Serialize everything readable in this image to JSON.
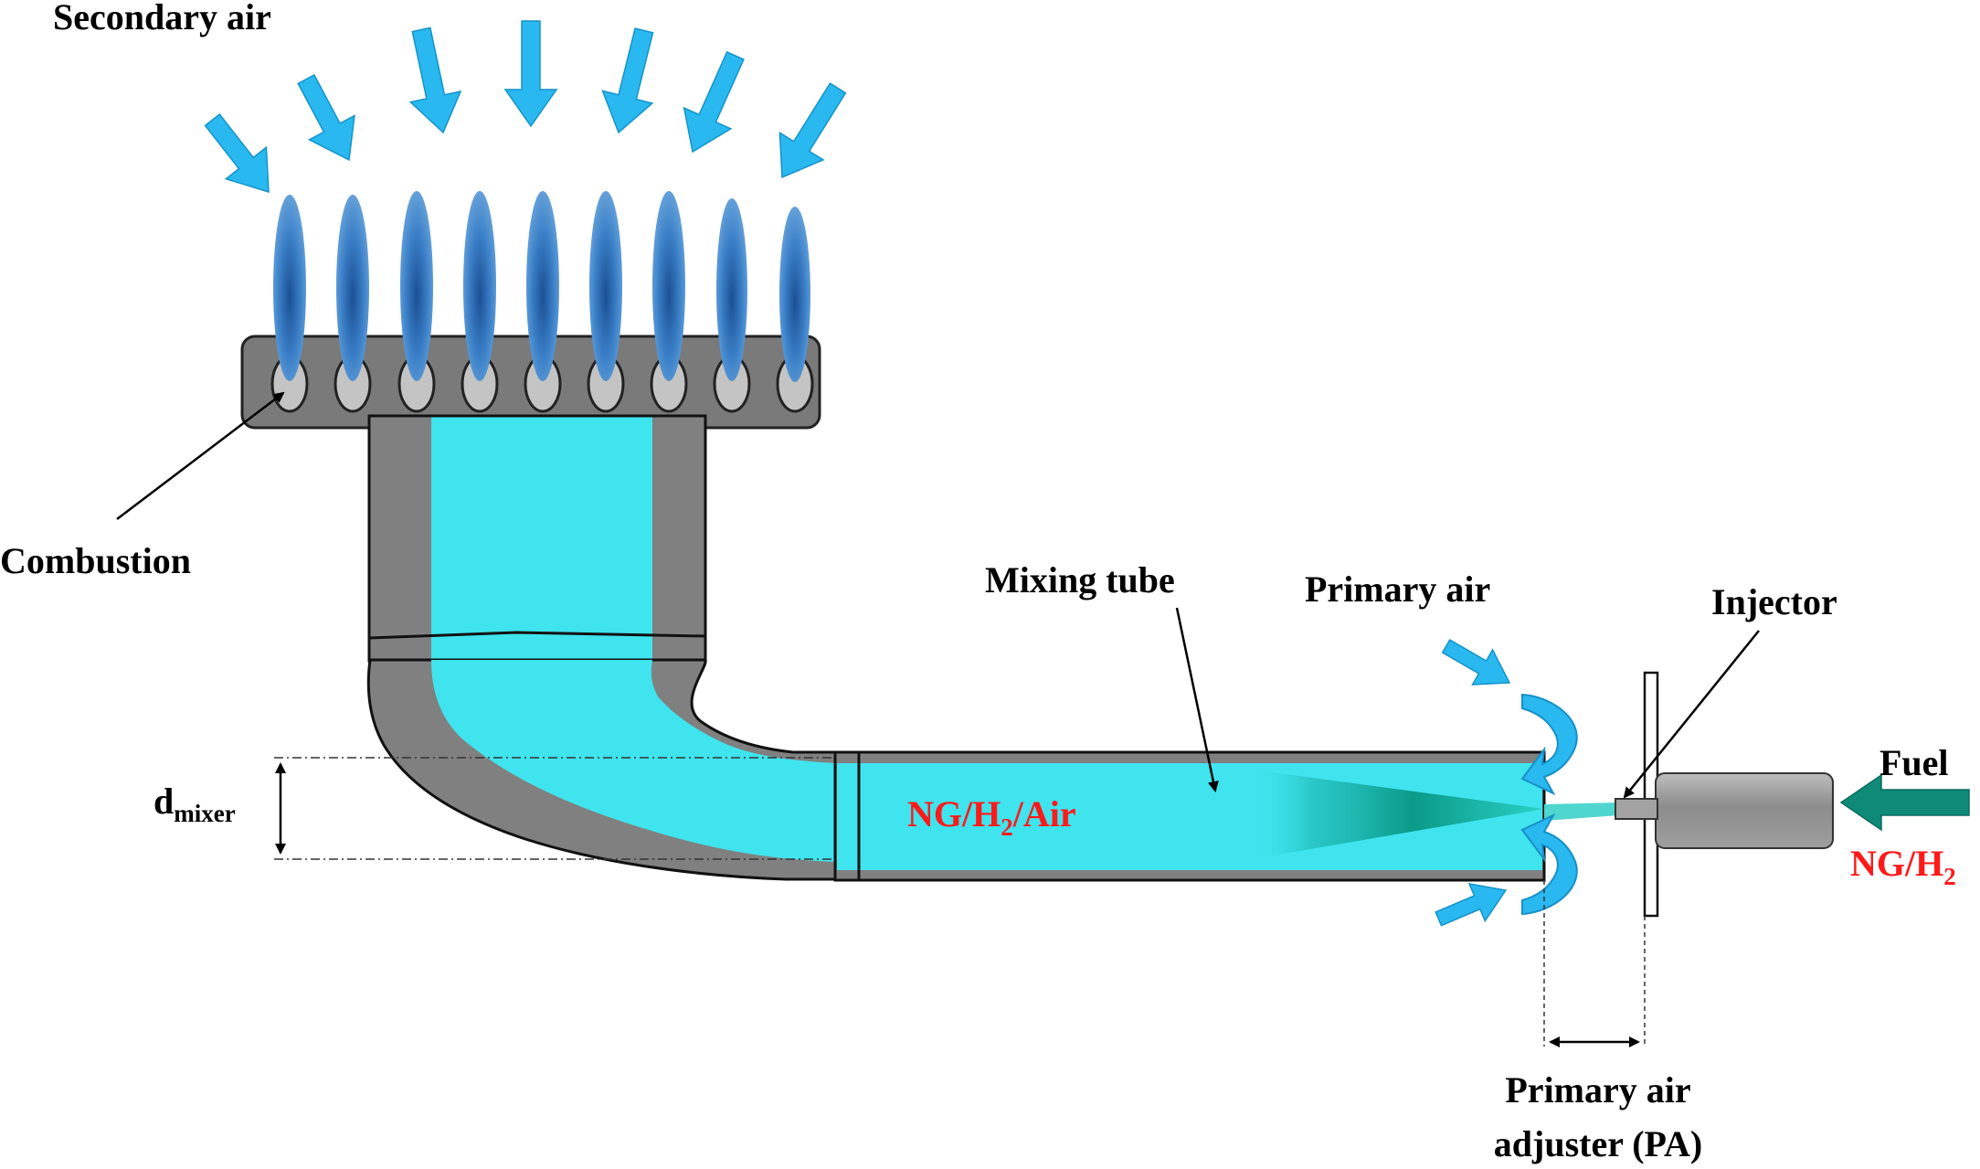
{
  "labels": {
    "secondary_air": "Secondary air",
    "combustion": "Combustion",
    "mixing_tube": "Mixing tube",
    "primary_air": "Primary air",
    "injector": "Injector",
    "fuel": "Fuel",
    "fuel_type_main": "NG/H",
    "fuel_type_sub": "2",
    "d_mixer_main": "d",
    "d_mixer_sub": "mixer",
    "mixture_pre": "NG/H",
    "mixture_sub": "2",
    "mixture_post": "/Air",
    "pa_line1": "Primary air",
    "pa_line2": "adjuster (PA)"
  },
  "colors": {
    "mixture": "#3fe4ee",
    "tube_wall": "#808080",
    "flame": "#2f6fb8",
    "air_arrow": "#2ab8f0",
    "fuel_arrow": "#0f8a78",
    "label_red": "#ff1a1a"
  },
  "icons": {
    "flame": "flame-icon",
    "air_arrow": "air-arrow-icon",
    "fuel_arrow": "fuel-arrow-icon",
    "swirl": "swirl-arrow-icon"
  }
}
